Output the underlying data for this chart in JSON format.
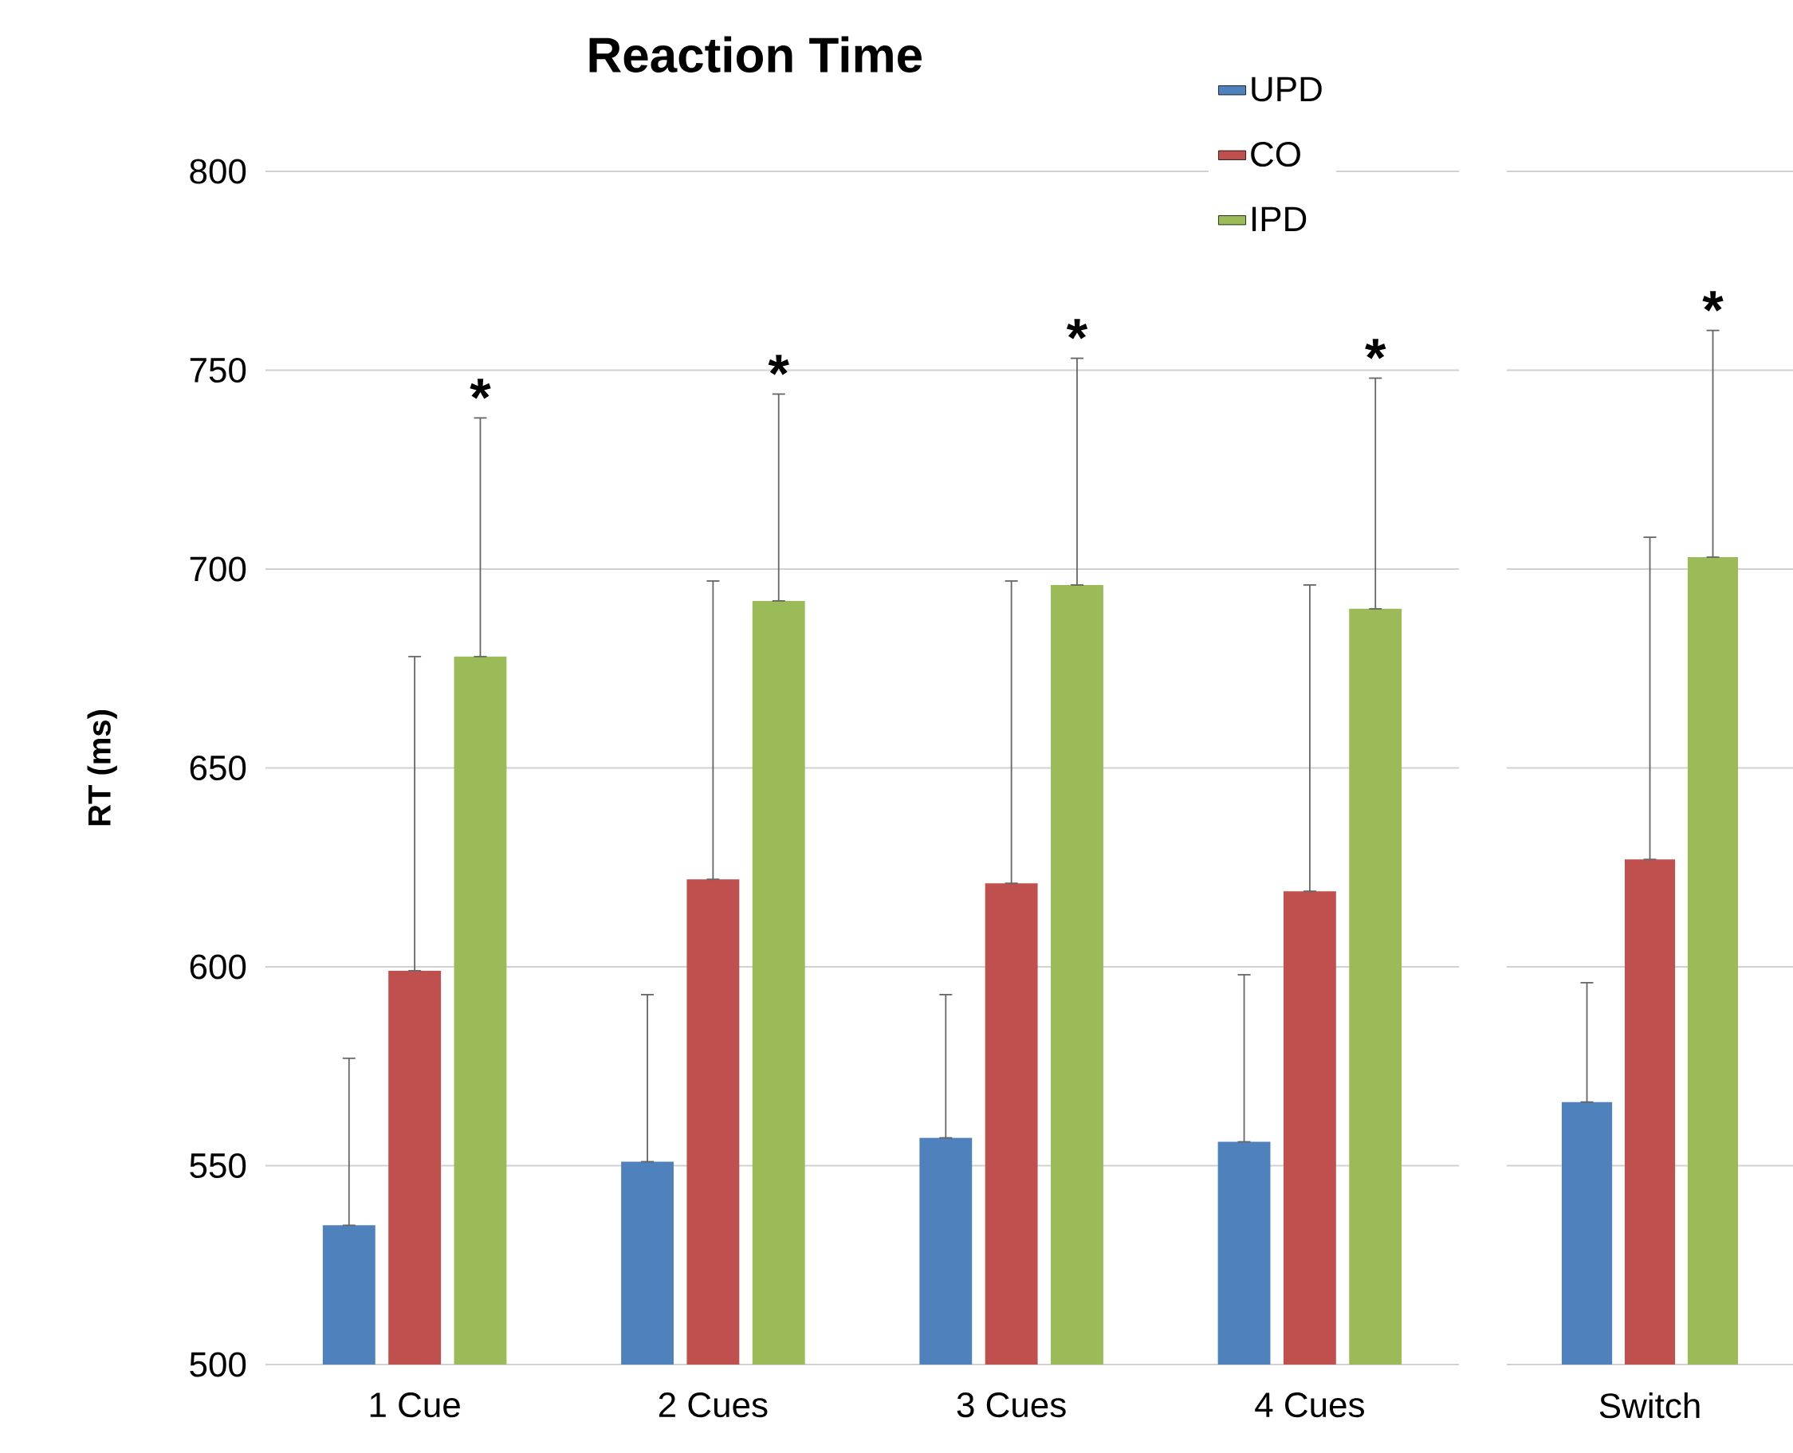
{
  "chart_data": [
    {
      "type": "bar",
      "title": "Reaction Time",
      "ylabel": "RT (ms)",
      "categories": [
        "1 Cue",
        "2 Cues",
        "3 Cues",
        "4 Cues"
      ],
      "series": [
        {
          "name": "UPD",
          "color": "#4f81bd",
          "values": [
            535,
            551,
            557,
            556
          ],
          "errors": [
            [
              535,
              577
            ],
            [
              551,
              593
            ],
            [
              557,
              593
            ],
            [
              556,
              598
            ]
          ]
        },
        {
          "name": "CO",
          "color": "#c0504d",
          "values": [
            599,
            622,
            621,
            619
          ],
          "errors": [
            [
              599,
              678
            ],
            [
              622,
              697
            ],
            [
              621,
              697
            ],
            [
              619,
              696
            ]
          ]
        },
        {
          "name": "IPD",
          "color": "#9bbb59",
          "values": [
            678,
            692,
            696,
            690
          ],
          "errors": [
            [
              678,
              738
            ],
            [
              692,
              744
            ],
            [
              696,
              753
            ],
            [
              690,
              748
            ]
          ]
        }
      ],
      "ylim": [
        500,
        800
      ],
      "yticks": [
        500,
        550,
        600,
        650,
        700,
        750,
        800
      ],
      "grid": "y",
      "legend": "top right",
      "annotations": [
        "*",
        "*",
        "*",
        "*"
      ]
    },
    {
      "type": "bar",
      "categories": [
        "Switch"
      ],
      "series": [
        {
          "color": "#4f81bd",
          "values": [
            566
          ],
          "errors": [
            [
              566,
              596
            ]
          ]
        },
        {
          "color": "#c0504d",
          "values": [
            627
          ],
          "errors": [
            [
              627,
              708
            ]
          ]
        },
        {
          "color": "#9bbb59",
          "values": [
            703
          ],
          "errors": [
            [
              703,
              760
            ]
          ]
        }
      ],
      "ylim": [
        500,
        800
      ],
      "yticks": [
        500,
        550,
        600,
        650,
        700,
        750,
        800
      ],
      "grid": "y",
      "tick_labels": "x",
      "annotations": [
        "*"
      ]
    }
  ]
}
